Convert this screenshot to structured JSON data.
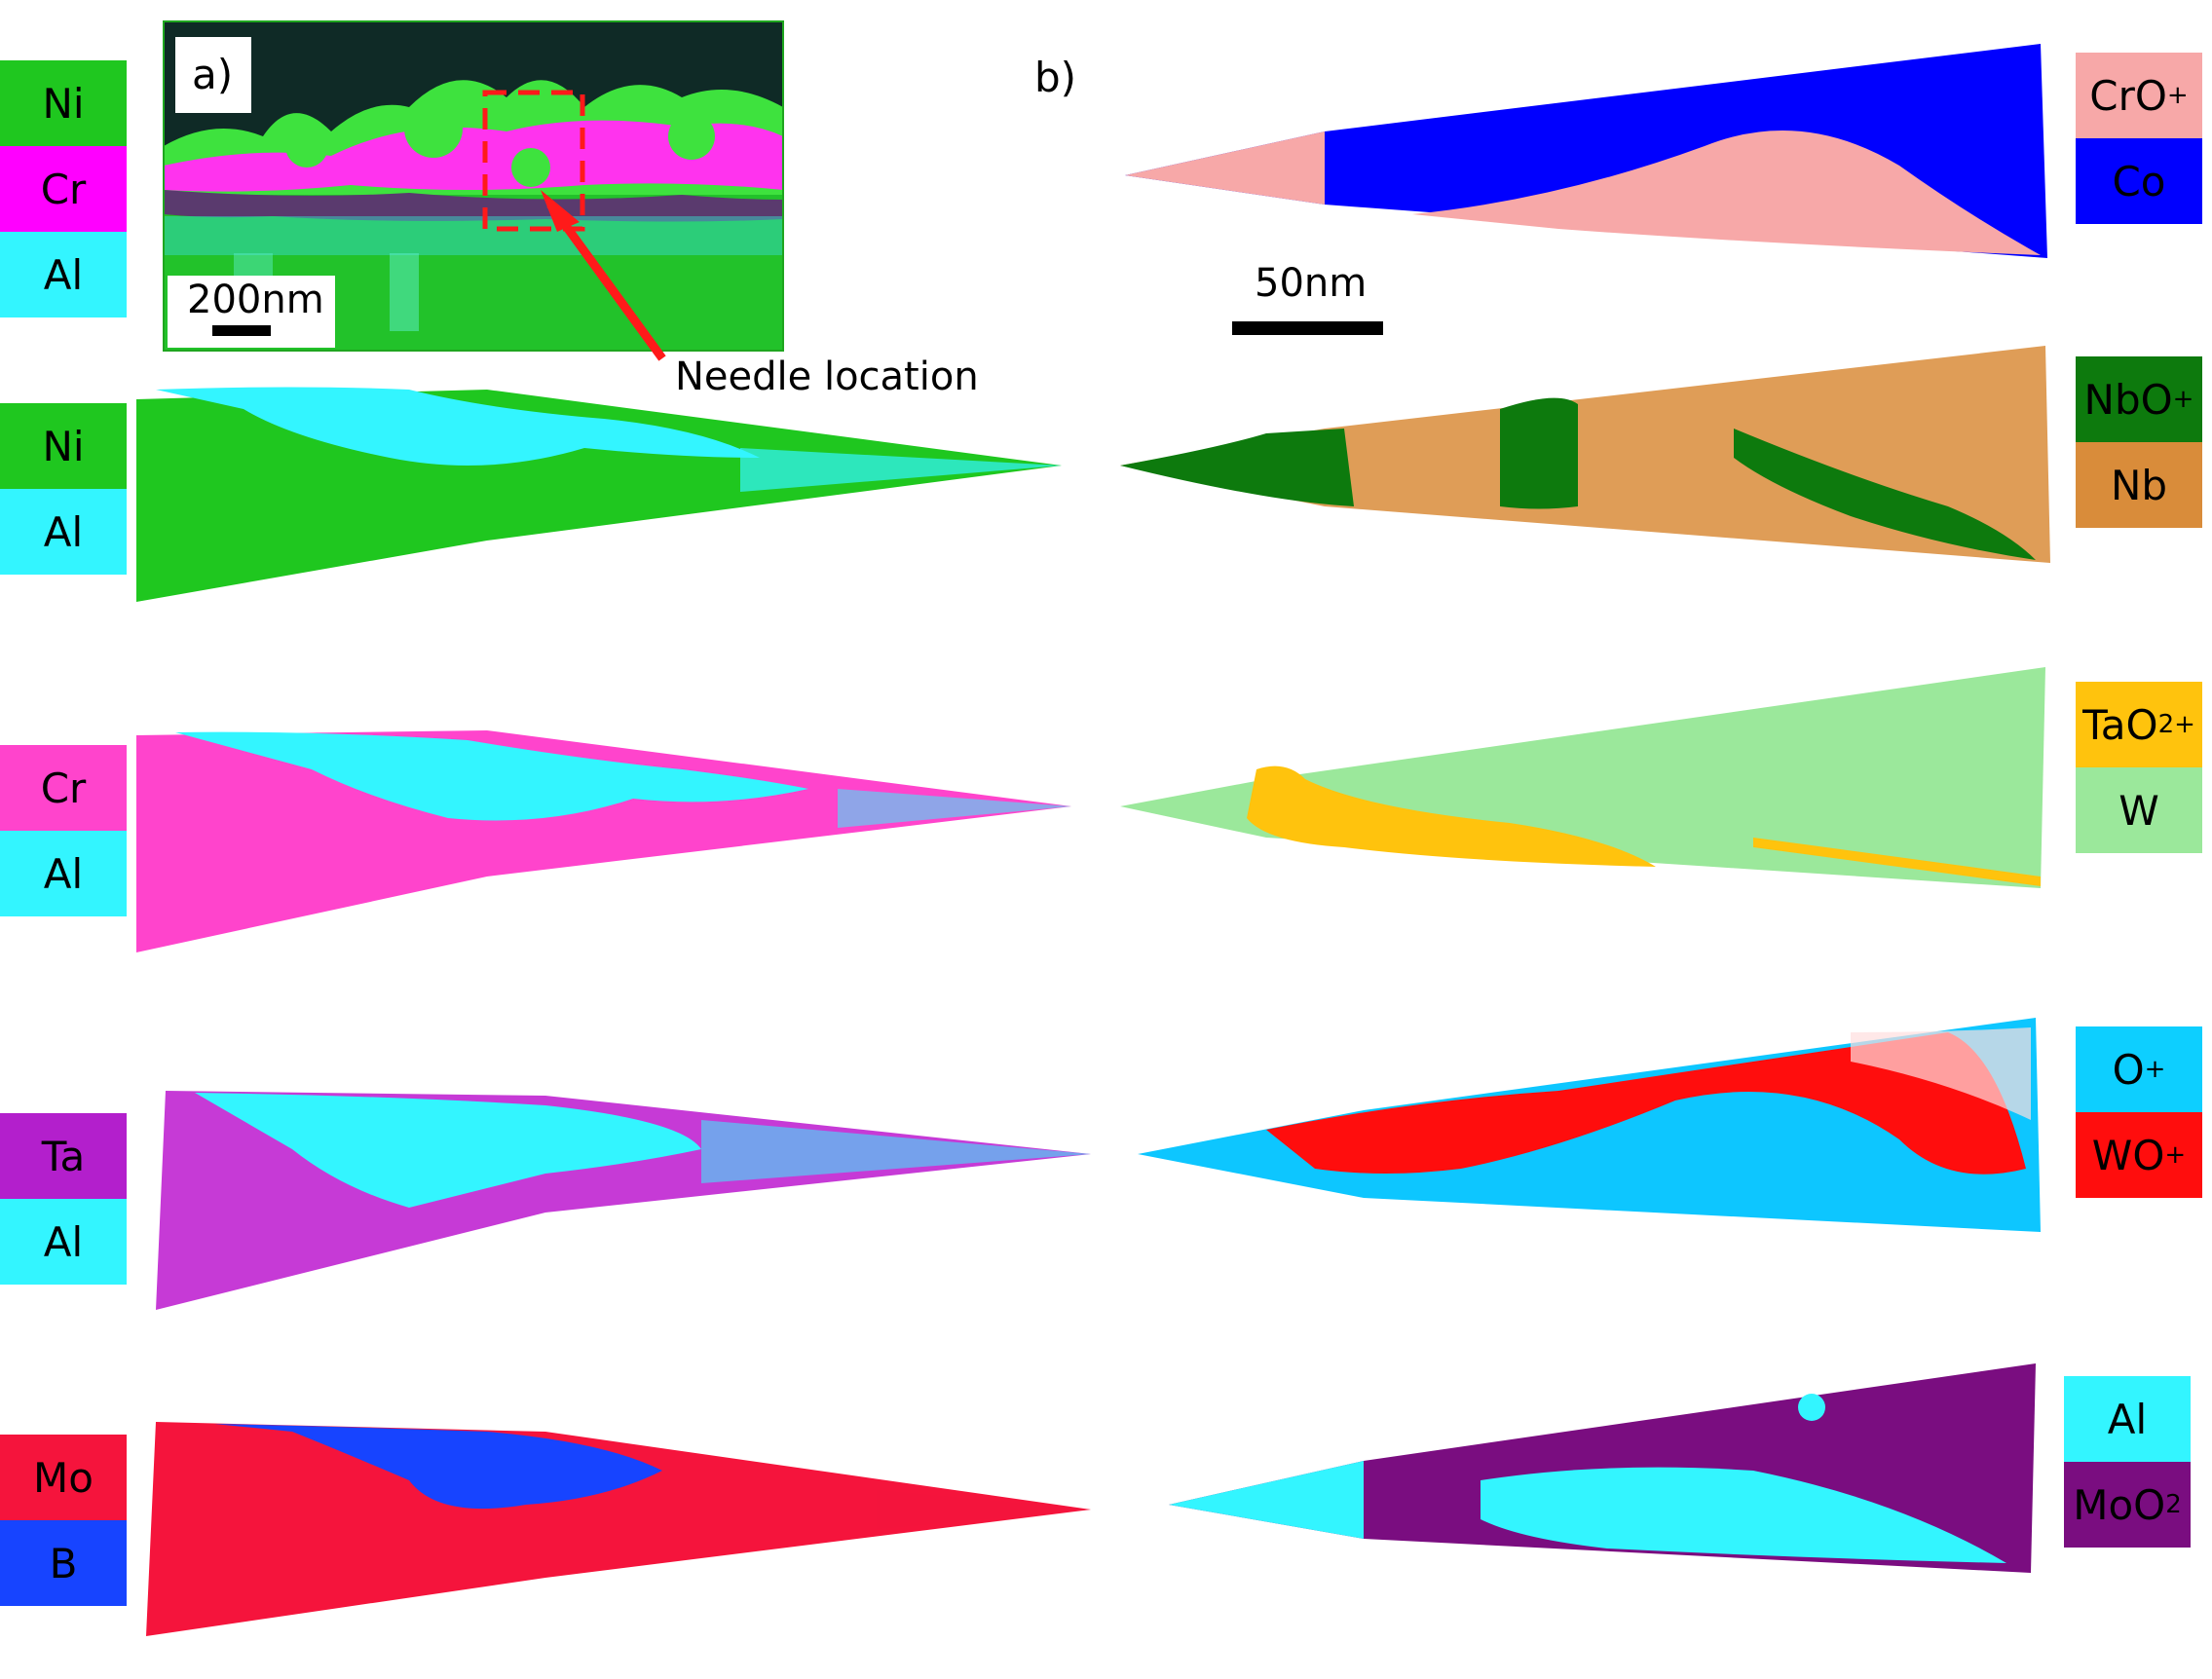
{
  "figure": {
    "panel_a": {
      "label": "a)",
      "scalebar": "200nm",
      "annotation": "Needle location",
      "legend": [
        {
          "text": "Ni",
          "color": "#1fc71f"
        },
        {
          "text": "Cr",
          "color": "#ff00ff"
        },
        {
          "text": "Al",
          "color": "#33f5ff"
        }
      ]
    },
    "panel_b": {
      "label": "b)",
      "scalebar": "50nm"
    },
    "left_maps": [
      {
        "top": {
          "text": "Ni",
          "color": "#1fc71f"
        },
        "bottom": {
          "text": "Al",
          "color": "#33f5ff"
        }
      },
      {
        "top": {
          "text": "Cr",
          "color": "#ff44cc"
        },
        "bottom": {
          "text": "Al",
          "color": "#33f5ff"
        }
      },
      {
        "top": {
          "text": "Ta",
          "color": "#b31fcc"
        },
        "bottom": {
          "text": "Al",
          "color": "#33f5ff"
        }
      },
      {
        "top": {
          "text": "Mo",
          "color": "#f5143c"
        },
        "bottom": {
          "text": "B",
          "color": "#1744ff"
        }
      }
    ],
    "right_maps": [
      {
        "top": {
          "text": "CrO",
          "sup": "+",
          "color": "#f7a8a8"
        },
        "bottom": {
          "text": "Co",
          "color": "#0000ff"
        }
      },
      {
        "top": {
          "text": "NbO",
          "sup": "+",
          "color": "#0d7a0d"
        },
        "bottom": {
          "text": "Nb",
          "color": "#d98c3a"
        }
      },
      {
        "top": {
          "text": "TaO",
          "sub": "2",
          "sup": "+",
          "color": "#ffc30d"
        },
        "bottom": {
          "text": "W",
          "color": "#9be89b"
        }
      },
      {
        "top": {
          "text": "O",
          "sup": "+",
          "color": "#0dcfff"
        },
        "bottom": {
          "text": "WO",
          "sup": "+",
          "color": "#ff0d0d"
        }
      },
      {
        "top": {
          "text": "Al",
          "color": "#33f5ff"
        },
        "bottom": {
          "text": "MoO",
          "sub": "2",
          "color": "#7a0d80"
        }
      }
    ]
  }
}
